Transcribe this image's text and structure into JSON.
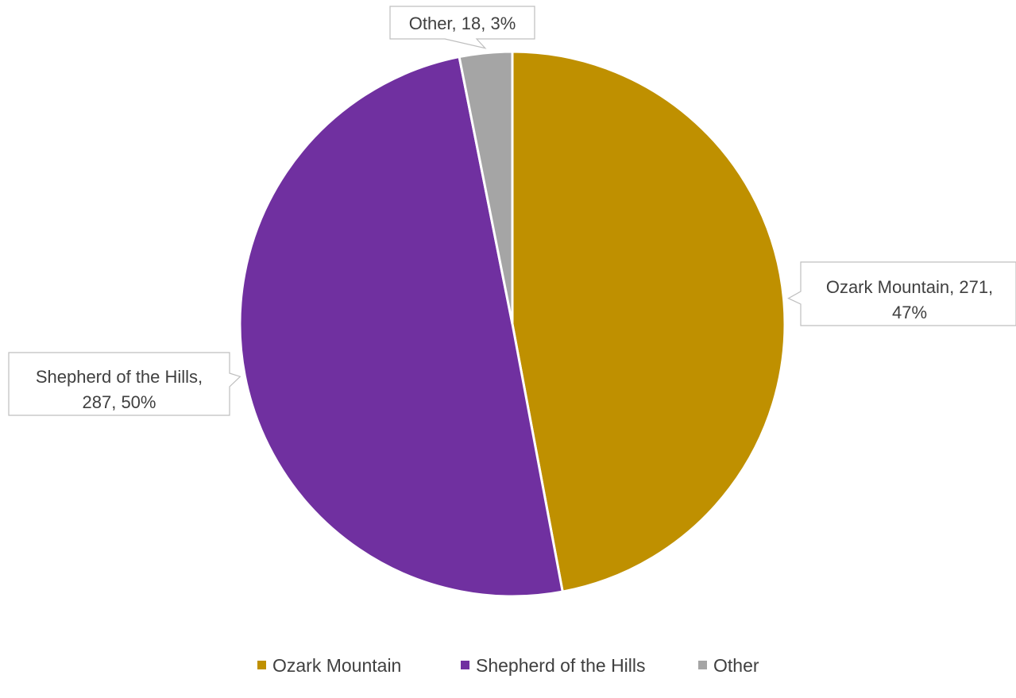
{
  "chart_data": {
    "type": "pie",
    "title": "",
    "slices": [
      {
        "name": "Ozark Mountain",
        "value": 271,
        "percent": "47%",
        "color": "#bf9000",
        "label_lines": [
          "Ozark Mountain, 271,",
          "47%"
        ]
      },
      {
        "name": "Shepherd of the Hills",
        "value": 287,
        "percent": "50%",
        "color": "#7030a0",
        "label_lines": [
          "Shepherd of the Hills,",
          "287, 50%"
        ]
      },
      {
        "name": "Other",
        "value": 18,
        "percent": "3%",
        "color": "#a5a5a5",
        "label_lines": [
          "Other, 18, 3%"
        ]
      }
    ],
    "legend": {
      "position": "bottom",
      "entries": [
        "Ozark Mountain",
        "Shepherd of the Hills",
        "Other"
      ]
    }
  }
}
